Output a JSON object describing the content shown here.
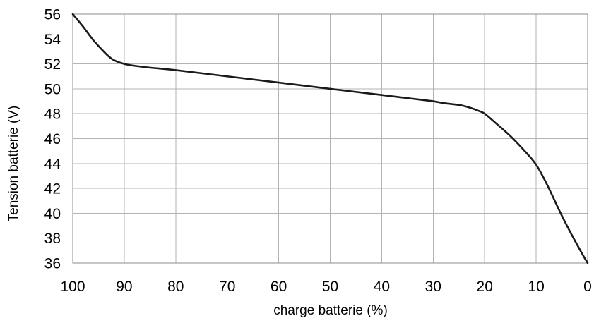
{
  "chart_data": {
    "type": "line",
    "title": "",
    "xlabel": "charge batterie (%)",
    "ylabel": "Tension batterie (V)",
    "xlim": [
      100,
      0
    ],
    "ylim": [
      36,
      56
    ],
    "x_reversed": true,
    "grid": true,
    "legend": "none",
    "x_ticks": [
      100,
      90,
      80,
      70,
      60,
      50,
      40,
      30,
      20,
      10,
      0
    ],
    "y_ticks": [
      36,
      38,
      40,
      42,
      44,
      46,
      48,
      50,
      52,
      54,
      56
    ],
    "line_color": "#1a1a1a",
    "grid_color": "#b3b3b3",
    "series": [
      {
        "x": [
          100,
          98,
          96,
          94,
          93,
          92,
          90,
          88,
          85,
          80,
          70,
          60,
          50,
          40,
          35,
          30,
          28,
          25,
          23,
          21,
          20,
          18,
          15,
          12,
          10,
          8,
          5,
          3,
          1,
          0
        ],
        "values": [
          56.0,
          55.0,
          53.9,
          53.0,
          52.6,
          52.3,
          52.0,
          51.85,
          51.7,
          51.5,
          51.0,
          50.5,
          50.0,
          49.5,
          49.25,
          49.0,
          48.85,
          48.7,
          48.5,
          48.2,
          48.0,
          47.3,
          46.2,
          44.9,
          43.9,
          42.4,
          39.8,
          38.2,
          36.7,
          36.0
        ]
      }
    ]
  }
}
